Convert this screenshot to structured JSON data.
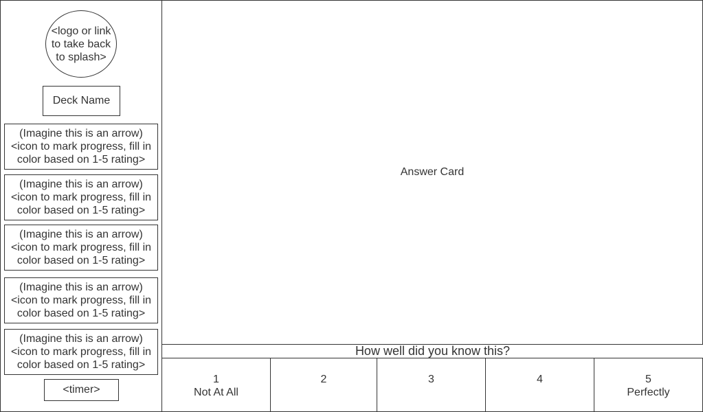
{
  "sidebar": {
    "logo_text": "<logo or link\nto take back\nto splash>",
    "deck_name": "Deck Name",
    "progress_items": [
      {
        "text": "(Imagine this is an arrow)\n<icon to mark progress, fill in\ncolor based on 1-5 rating>"
      },
      {
        "text": "(Imagine this is an arrow)\n<icon to mark progress, fill in\ncolor based on 1-5 rating>"
      },
      {
        "text": "(Imagine this is an arrow)\n<icon to mark progress, fill in\ncolor based on 1-5 rating>"
      },
      {
        "text": "(Imagine this is an arrow)\n<icon to mark progress, fill in\ncolor based on 1-5 rating>"
      },
      {
        "text": "(Imagine this is an arrow)\n<icon to mark progress, fill in\ncolor based on 1-5 rating>"
      }
    ],
    "timer": "<timer>"
  },
  "main": {
    "card_label": "Answer Card",
    "question": "How well did you know this?",
    "ratings": [
      {
        "label": "1\nNot At All"
      },
      {
        "label": "2"
      },
      {
        "label": "3"
      },
      {
        "label": "4"
      },
      {
        "label": "5\nPerfectly"
      }
    ]
  }
}
